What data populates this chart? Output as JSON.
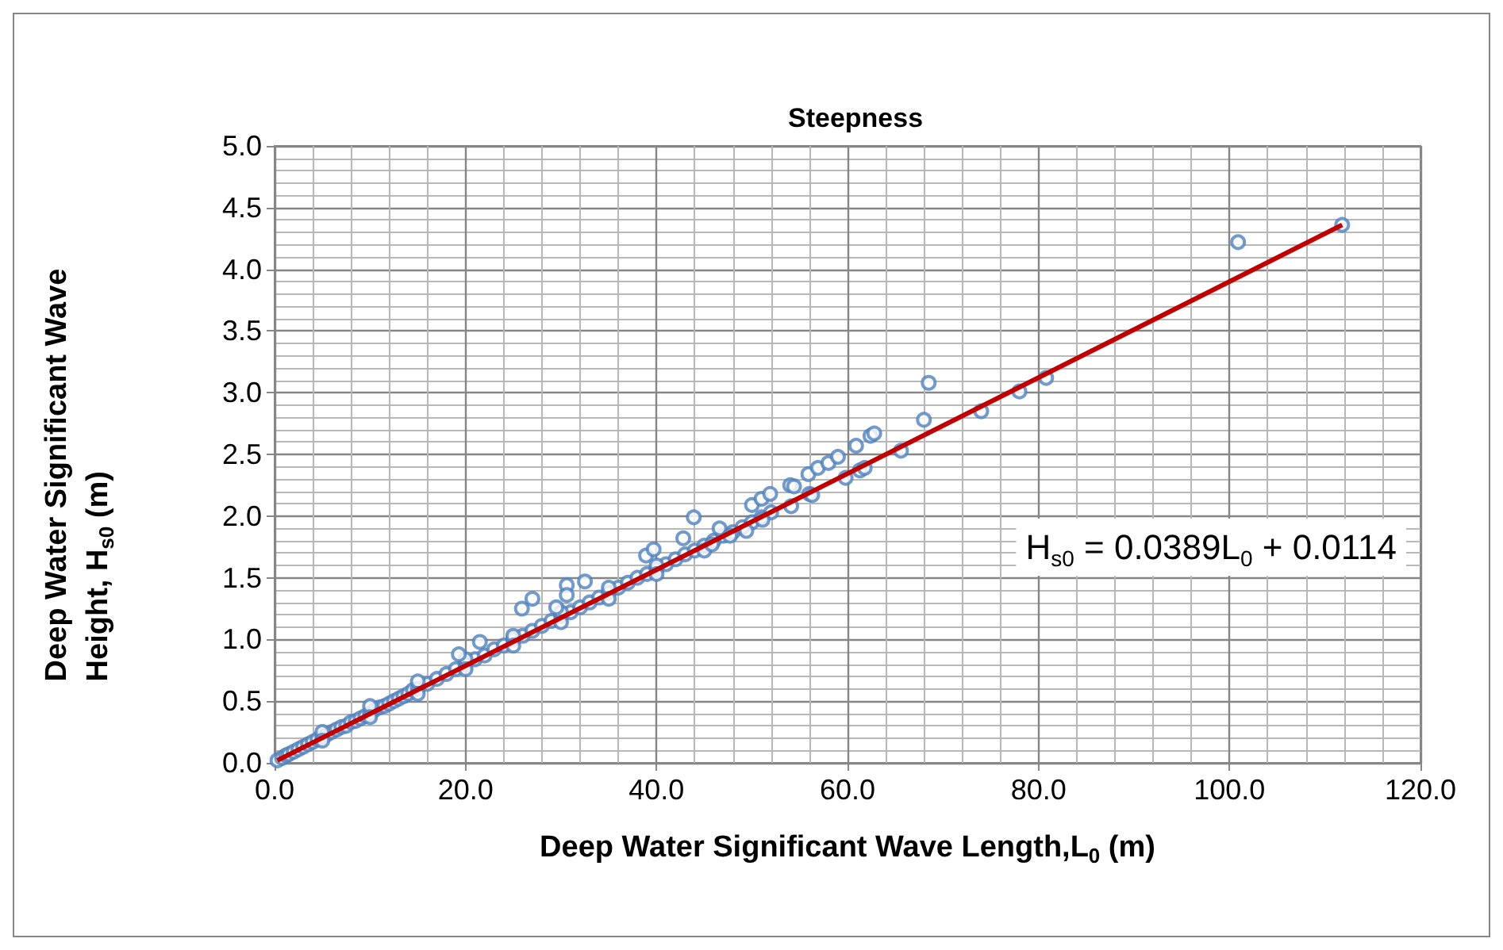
{
  "chart_data": {
    "type": "scatter",
    "title": "Steepness",
    "xlabel": "Deep Water Significant Wave Length,L$_{0}$ (m)",
    "ylabel": "Deep Water Significant Wave Height, H$_{s0}$ (m)",
    "annotations": [
      "H$_{s0}$ = 0.0389L$_{0}$ + 0.0114"
    ],
    "series": [
      {
        "color": "#4f81bd",
        "marker": "circle",
        "x": [
          0.3,
          0.8,
          1.2,
          1.5,
          2.0,
          2.5,
          3.0,
          3.5,
          4.0,
          4.5,
          5.0,
          5.5,
          6.0,
          6.5,
          7.0,
          7.5,
          8.0,
          8.5,
          9.0,
          9.5,
          10.0,
          10.5,
          11.0,
          11.5,
          12.0,
          12.5,
          13.0,
          13.5,
          14.0,
          14.5,
          15.0,
          16.0,
          17.0,
          18.0,
          19.0,
          20.0,
          21.0,
          22.0,
          23.0,
          24.0,
          25.0,
          26.0,
          27.0,
          28.0,
          29.0,
          30.0,
          31.0,
          32.0,
          33.0,
          34.0,
          35.0,
          36.0,
          37.0,
          38.0,
          39.0,
          40.0,
          41.0,
          42.0,
          43.0,
          44.0,
          45.0,
          46.0,
          47.0,
          48.0,
          49.0,
          50.0,
          51.0,
          52.0,
          5,
          10,
          15,
          20,
          25,
          30,
          35,
          40,
          5,
          10,
          15,
          20,
          25,
          30,
          35,
          40,
          45,
          19.3,
          21.5,
          25.9,
          27.0,
          29.5,
          30.6,
          30.6,
          32.5,
          38.9,
          39.7,
          42.8,
          43.9,
          45.8,
          46.6,
          47.7,
          49.4,
          50.0,
          51.0,
          51.1,
          51.9,
          54.0,
          54.1,
          54.4,
          55.9,
          56.0,
          56.3,
          56.9,
          58.0,
          59.0,
          59.8,
          60.9,
          61.3,
          61.8,
          62.4,
          62.8,
          65.6,
          68.0,
          68.5,
          74.0,
          78.0,
          80.8,
          100.9,
          111.8
        ],
        "values": [
          0.02,
          0.04,
          0.06,
          0.07,
          0.09,
          0.11,
          0.13,
          0.15,
          0.17,
          0.19,
          0.21,
          0.23,
          0.25,
          0.27,
          0.29,
          0.3,
          0.33,
          0.34,
          0.36,
          0.38,
          0.4,
          0.43,
          0.45,
          0.46,
          0.48,
          0.5,
          0.52,
          0.54,
          0.56,
          0.59,
          0.6,
          0.64,
          0.68,
          0.72,
          0.76,
          0.8,
          0.84,
          0.87,
          0.92,
          0.95,
          1.0,
          1.03,
          1.07,
          1.11,
          1.15,
          1.19,
          1.22,
          1.26,
          1.3,
          1.34,
          1.38,
          1.42,
          1.46,
          1.5,
          1.53,
          1.57,
          1.61,
          1.65,
          1.69,
          1.72,
          1.76,
          1.8,
          1.84,
          1.87,
          1.91,
          1.95,
          1.99,
          2.03,
          0.25,
          0.46,
          0.66,
          0.84,
          1.03,
          1.22,
          1.42,
          1.6,
          0.18,
          0.37,
          0.56,
          0.76,
          0.95,
          1.14,
          1.33,
          1.53,
          1.72,
          0.88,
          0.98,
          1.25,
          1.33,
          1.26,
          1.44,
          1.36,
          1.47,
          1.68,
          1.73,
          1.82,
          1.99,
          1.77,
          1.9,
          1.84,
          1.88,
          2.09,
          2.14,
          1.97,
          2.18,
          2.25,
          2.08,
          2.24,
          2.34,
          2.18,
          2.17,
          2.39,
          2.43,
          2.48,
          2.31,
          2.57,
          2.37,
          2.39,
          2.65,
          2.67,
          2.53,
          2.78,
          3.08,
          2.85,
          3.01,
          3.12,
          4.22,
          4.36
        ]
      },
      {
        "type": "line",
        "color": "#c00000",
        "marker": "none",
        "x": [
          0.3,
          111.8
        ],
        "values": [
          0.02,
          4.36
        ]
      }
    ],
    "xlim": [
      0,
      120
    ],
    "xticks": [
      {
        "value": 0,
        "label": "0.0"
      },
      {
        "value": 20,
        "label": "20.0"
      },
      {
        "value": 40,
        "label": "40.0"
      },
      {
        "value": 60,
        "label": "60.0"
      },
      {
        "value": 80,
        "label": "80.0"
      },
      {
        "value": 100,
        "label": "100.0"
      },
      {
        "value": 120,
        "label": "120.0"
      }
    ],
    "ylim": [
      0,
      5
    ],
    "yticks": [
      {
        "value": 0,
        "label": "0.0"
      },
      {
        "value": 0.5,
        "label": "0.5"
      },
      {
        "value": 1,
        "label": "1.0"
      },
      {
        "value": 1.5,
        "label": "1.5"
      },
      {
        "value": 2,
        "label": "2.0"
      },
      {
        "value": 2.5,
        "label": "2.5"
      },
      {
        "value": 3,
        "label": "3.0"
      },
      {
        "value": 3.5,
        "label": "3.5"
      },
      {
        "value": 4,
        "label": "4.0"
      },
      {
        "value": 4.5,
        "label": "4.5"
      },
      {
        "value": 5,
        "label": "5.0"
      }
    ],
    "grid": true
  }
}
